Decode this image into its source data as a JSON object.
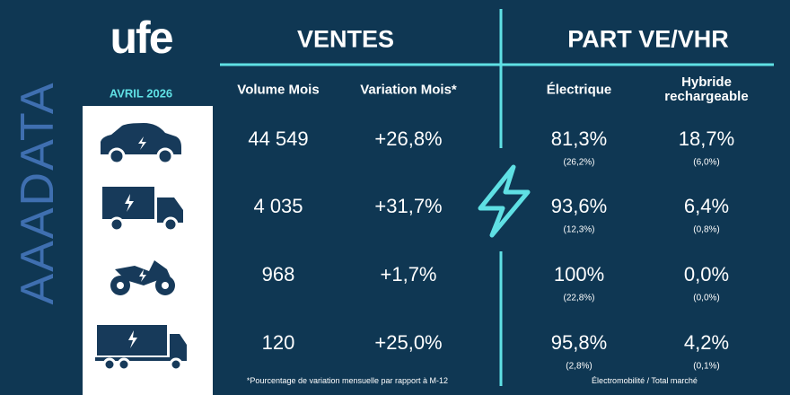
{
  "logo": "ufe",
  "brand": "AAADATA",
  "period": "AVRIL 2026",
  "sections": [
    "VENTES",
    "PART VE/VHR"
  ],
  "columns": [
    "Volume Mois",
    "Variation Mois*",
    "Électrique",
    "Hybride rechargeable"
  ],
  "rows": [
    {
      "volume": "44 549",
      "variation": "+26,8%",
      "electrique": "81,3%",
      "electrique_total": "(26,2%)",
      "hybride": "18,7%",
      "hybride_total": "(6,0%)"
    },
    {
      "volume": "4 035",
      "variation": "+31,7%",
      "electrique": "93,6%",
      "electrique_total": "(12,3%)",
      "hybride": "6,4%",
      "hybride_total": "(0,8%)"
    },
    {
      "volume": "968",
      "variation": "+1,7%",
      "electrique": "100%",
      "electrique_total": "(22,8%)",
      "hybride": "0,0%",
      "hybride_total": "(0,0%)"
    },
    {
      "volume": "120",
      "variation": "+25,0%",
      "electrique": "95,8%",
      "electrique_total": "(2,8%)",
      "hybride": "4,2%",
      "hybride_total": "(0,1%)"
    }
  ],
  "footnotes": [
    "*Pourcentage de variation mensuelle par rapport à M-12",
    "Électromobilité / Total marché"
  ]
}
